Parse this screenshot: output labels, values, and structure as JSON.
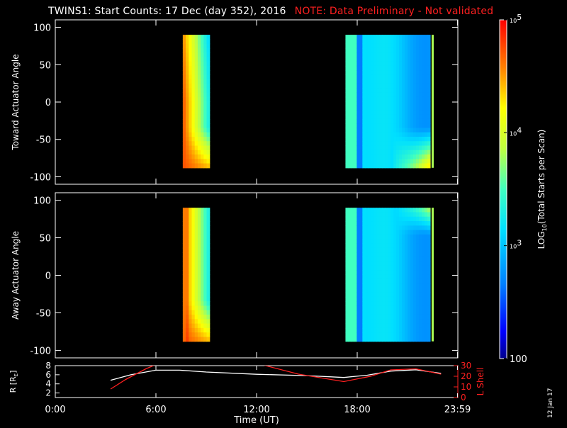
{
  "header": {
    "title": "TWINS1: Start Counts: 17 Dec (day 352), 2016",
    "note": "NOTE: Data Preliminary - Not validated"
  },
  "datestamp": "12 Jan 17",
  "colorbar": {
    "label": "LOG10(Total Starts per Scan)",
    "ticks": [
      "10^5",
      "10^4",
      "10^3",
      "100"
    ],
    "range_log10": [
      2,
      5
    ]
  },
  "chart_data": [
    {
      "type": "heatmap",
      "name": "toward",
      "ylabel": "Toward Actuator Angle",
      "ylim": [
        -110,
        110
      ],
      "yticks": [
        100,
        50,
        0,
        -50,
        -100
      ],
      "xlim": [
        0,
        24
      ],
      "angle_range": [
        -88,
        90
      ],
      "data_blocks_hours": [
        [
          7.6,
          9.2
        ],
        [
          17.3,
          22.35
        ]
      ],
      "colorscale": "log10 counts, 2 (blue) to 5 (red)"
    },
    {
      "type": "heatmap",
      "name": "away",
      "ylabel": "Away Actuator Angle",
      "ylim": [
        -110,
        110
      ],
      "yticks": [
        100,
        50,
        0,
        -50,
        -100
      ],
      "xlim": [
        0,
        24
      ],
      "angle_range": [
        -88,
        90
      ],
      "data_blocks_hours": [
        [
          7.6,
          9.2
        ],
        [
          17.3,
          22.35
        ]
      ],
      "colorscale": "log10 counts, 2 (blue) to 5 (red)"
    },
    {
      "type": "line",
      "name": "orbit",
      "ylabel": "R [RE]",
      "y2label": "L Shell",
      "ylim": [
        1,
        8
      ],
      "yticks": [
        2,
        4,
        6,
        8
      ],
      "y2lim": [
        0,
        30
      ],
      "y2ticks": [
        0,
        10,
        20,
        30
      ],
      "xlim": [
        0,
        24
      ],
      "xlabel": "Time (UT)",
      "xticklabels": [
        "0:00",
        "6:00",
        "12:00",
        "18:00",
        "23:59"
      ],
      "xticks_hours": [
        0,
        6,
        12,
        18,
        23.98
      ],
      "series": [
        {
          "axis": "left",
          "color": "#ffffff",
          "x": [
            3.3,
            4.5,
            6.0,
            7.4,
            9.0,
            12.0,
            15.0,
            17.2,
            18.6,
            20.0,
            21.5,
            23.0
          ],
          "y": [
            4.8,
            6.0,
            7.0,
            7.0,
            6.6,
            6.1,
            5.8,
            5.4,
            5.9,
            6.8,
            7.1,
            6.3
          ]
        },
        {
          "axis": "right",
          "color": "#ff2020",
          "x": [
            3.3,
            4.2,
            5.4,
            6.3
          ],
          "y": [
            8,
            17,
            27,
            33
          ]
        },
        {
          "axis": "right",
          "color": "#ff2020",
          "x": [
            11.8,
            14.5,
            17.2,
            18.8,
            20.0,
            21.5,
            23.0
          ],
          "y": [
            33,
            22,
            15,
            20,
            26,
            27,
            22
          ]
        }
      ]
    }
  ]
}
